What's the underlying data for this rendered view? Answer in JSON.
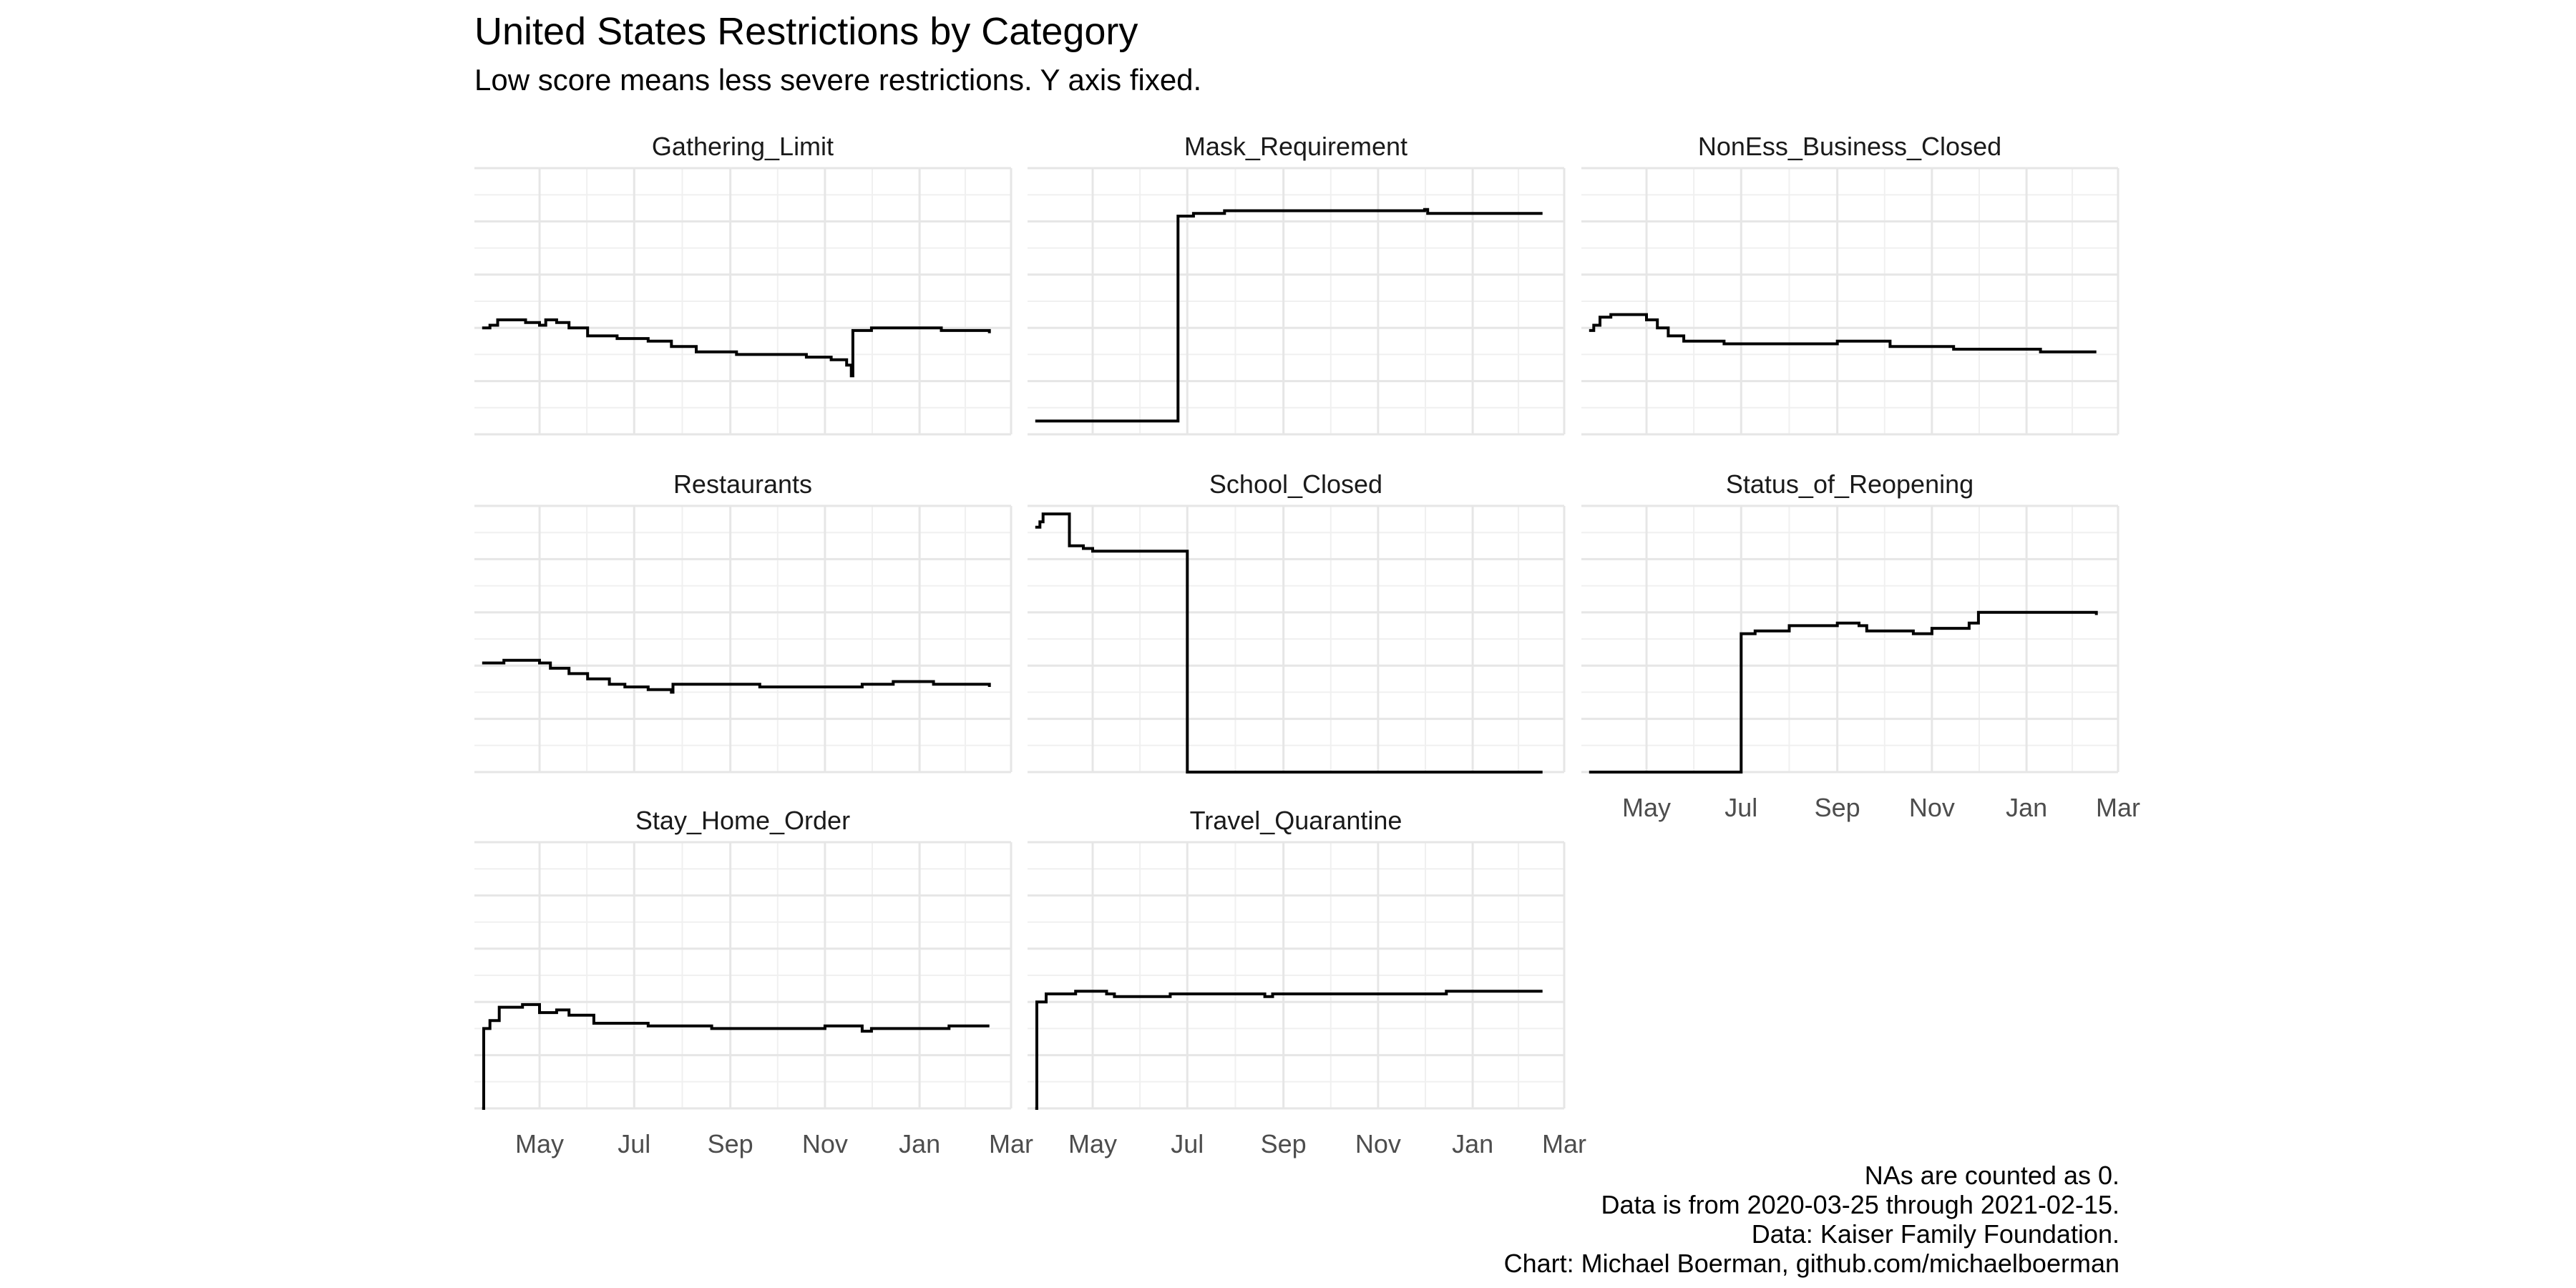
{
  "chart_data": {
    "type": "line",
    "title": "United States Restrictions by Category",
    "subtitle": "Low score means less severe restrictions. Y axis fixed.",
    "date_range": [
      "2020-03-25",
      "2021-02-15"
    ],
    "x_tick_labels": [
      "May",
      "Jul",
      "Sep",
      "Nov",
      "Jan",
      "Mar"
    ],
    "x_tick_dates": [
      "2020-05-01",
      "2020-07-01",
      "2020-09-01",
      "2020-11-01",
      "2021-01-01",
      "2021-03-01"
    ],
    "xlim": [
      "2020-03-20",
      "2021-03-01"
    ],
    "ylim": [
      0,
      1
    ],
    "y_tick_labels_shown": false,
    "grid": true,
    "line_color": "#000000",
    "facets": [
      {
        "name": "Gathering_Limit",
        "points": [
          [
            "2020-03-25",
            0.4
          ],
          [
            "2020-03-30",
            0.41
          ],
          [
            "2020-04-04",
            0.43
          ],
          [
            "2020-04-20",
            0.43
          ],
          [
            "2020-04-22",
            0.42
          ],
          [
            "2020-05-01",
            0.41
          ],
          [
            "2020-05-05",
            0.43
          ],
          [
            "2020-05-12",
            0.42
          ],
          [
            "2020-05-20",
            0.4
          ],
          [
            "2020-06-01",
            0.37
          ],
          [
            "2020-06-20",
            0.36
          ],
          [
            "2020-07-10",
            0.35
          ],
          [
            "2020-07-25",
            0.33
          ],
          [
            "2020-08-10",
            0.31
          ],
          [
            "2020-09-05",
            0.3
          ],
          [
            "2020-10-01",
            0.3
          ],
          [
            "2020-10-20",
            0.29
          ],
          [
            "2020-11-05",
            0.28
          ],
          [
            "2020-11-15",
            0.26
          ],
          [
            "2020-11-18",
            0.22
          ],
          [
            "2020-11-19",
            0.39
          ],
          [
            "2020-12-01",
            0.4
          ],
          [
            "2020-12-20",
            0.4
          ],
          [
            "2021-01-15",
            0.39
          ],
          [
            "2021-02-15",
            0.38
          ]
        ]
      },
      {
        "name": "Mask_Requirement",
        "points": [
          [
            "2020-03-25",
            0.05
          ],
          [
            "2020-06-24",
            0.05
          ],
          [
            "2020-06-25",
            0.82
          ],
          [
            "2020-07-05",
            0.83
          ],
          [
            "2020-07-25",
            0.84
          ],
          [
            "2020-10-15",
            0.84
          ],
          [
            "2020-12-01",
            0.845
          ],
          [
            "2020-12-03",
            0.83
          ],
          [
            "2021-02-15",
            0.83
          ]
        ]
      },
      {
        "name": "NonEss_Business_Closed",
        "points": [
          [
            "2020-03-25",
            0.39
          ],
          [
            "2020-03-28",
            0.41
          ],
          [
            "2020-04-01",
            0.44
          ],
          [
            "2020-04-08",
            0.45
          ],
          [
            "2020-04-25",
            0.45
          ],
          [
            "2020-05-01",
            0.43
          ],
          [
            "2020-05-08",
            0.4
          ],
          [
            "2020-05-15",
            0.37
          ],
          [
            "2020-05-25",
            0.35
          ],
          [
            "2020-06-15",
            0.35
          ],
          [
            "2020-06-20",
            0.34
          ],
          [
            "2020-08-01",
            0.34
          ],
          [
            "2020-09-01",
            0.35
          ],
          [
            "2020-10-01",
            0.35
          ],
          [
            "2020-10-05",
            0.33
          ],
          [
            "2020-11-01",
            0.33
          ],
          [
            "2020-11-15",
            0.32
          ],
          [
            "2020-12-15",
            0.32
          ],
          [
            "2021-01-10",
            0.31
          ],
          [
            "2021-02-15",
            0.31
          ]
        ]
      },
      {
        "name": "Restaurants",
        "points": [
          [
            "2020-03-25",
            0.41
          ],
          [
            "2020-04-08",
            0.42
          ],
          [
            "2020-04-25",
            0.42
          ],
          [
            "2020-05-01",
            0.41
          ],
          [
            "2020-05-08",
            0.39
          ],
          [
            "2020-05-20",
            0.37
          ],
          [
            "2020-06-01",
            0.35
          ],
          [
            "2020-06-15",
            0.33
          ],
          [
            "2020-06-25",
            0.32
          ],
          [
            "2020-07-10",
            0.31
          ],
          [
            "2020-07-25",
            0.3
          ],
          [
            "2020-07-26",
            0.33
          ],
          [
            "2020-08-10",
            0.33
          ],
          [
            "2020-09-15",
            0.33
          ],
          [
            "2020-09-20",
            0.32
          ],
          [
            "2020-11-15",
            0.32
          ],
          [
            "2020-11-25",
            0.33
          ],
          [
            "2020-12-15",
            0.34
          ],
          [
            "2021-01-10",
            0.33
          ],
          [
            "2021-02-15",
            0.32
          ]
        ]
      },
      {
        "name": "School_Closed",
        "points": [
          [
            "2020-03-25",
            0.92
          ],
          [
            "2020-03-28",
            0.94
          ],
          [
            "2020-03-30",
            0.97
          ],
          [
            "2020-04-15",
            0.97
          ],
          [
            "2020-04-16",
            0.85
          ],
          [
            "2020-04-25",
            0.84
          ],
          [
            "2020-05-01",
            0.83
          ],
          [
            "2020-06-30",
            0.83
          ],
          [
            "2020-07-01",
            0.0
          ],
          [
            "2021-02-15",
            0.0
          ]
        ]
      },
      {
        "name": "Status_of_Reopening",
        "points": [
          [
            "2020-03-25",
            0.0
          ],
          [
            "2020-06-30",
            0.0
          ],
          [
            "2020-07-01",
            0.52
          ],
          [
            "2020-07-10",
            0.53
          ],
          [
            "2020-08-01",
            0.55
          ],
          [
            "2020-09-01",
            0.56
          ],
          [
            "2020-09-15",
            0.55
          ],
          [
            "2020-09-20",
            0.53
          ],
          [
            "2020-10-20",
            0.52
          ],
          [
            "2020-11-01",
            0.54
          ],
          [
            "2020-11-25",
            0.56
          ],
          [
            "2020-12-01",
            0.6
          ],
          [
            "2021-01-01",
            0.6
          ],
          [
            "2021-02-08",
            0.6
          ],
          [
            "2021-02-15",
            0.59
          ]
        ]
      },
      {
        "name": "Stay_Home_Order",
        "points": [
          [
            "2020-03-25",
            0.0
          ],
          [
            "2020-03-26",
            0.3
          ],
          [
            "2020-03-30",
            0.33
          ],
          [
            "2020-04-05",
            0.38
          ],
          [
            "2020-04-20",
            0.39
          ],
          [
            "2020-04-22",
            0.39
          ],
          [
            "2020-05-01",
            0.36
          ],
          [
            "2020-05-12",
            0.37
          ],
          [
            "2020-05-20",
            0.35
          ],
          [
            "2020-06-05",
            0.32
          ],
          [
            "2020-07-10",
            0.31
          ],
          [
            "2020-08-20",
            0.3
          ],
          [
            "2020-10-01",
            0.3
          ],
          [
            "2020-11-01",
            0.31
          ],
          [
            "2020-11-20",
            0.31
          ],
          [
            "2020-11-25",
            0.29
          ],
          [
            "2020-12-01",
            0.3
          ],
          [
            "2021-01-15",
            0.3
          ],
          [
            "2021-01-20",
            0.31
          ],
          [
            "2021-02-15",
            0.31
          ]
        ]
      },
      {
        "name": "Travel_Quarantine",
        "points": [
          [
            "2020-03-25",
            0.0
          ],
          [
            "2020-03-26",
            0.4
          ],
          [
            "2020-04-01",
            0.43
          ],
          [
            "2020-04-20",
            0.44
          ],
          [
            "2020-05-01",
            0.44
          ],
          [
            "2020-05-10",
            0.43
          ],
          [
            "2020-05-15",
            0.42
          ],
          [
            "2020-06-15",
            0.42
          ],
          [
            "2020-06-20",
            0.43
          ],
          [
            "2020-08-15",
            0.43
          ],
          [
            "2020-08-20",
            0.42
          ],
          [
            "2020-08-25",
            0.43
          ],
          [
            "2020-11-01",
            0.43
          ],
          [
            "2020-12-15",
            0.44
          ],
          [
            "2021-02-15",
            0.44
          ]
        ]
      }
    ]
  },
  "caption": {
    "line1": "NAs are counted as 0.",
    "line2": "Data is from 2020-03-25 through 2021-02-15.",
    "line3": "Data: Kaiser Family Foundation.",
    "line4": "Chart: Michael Boerman, github.com/michaelboerman"
  }
}
